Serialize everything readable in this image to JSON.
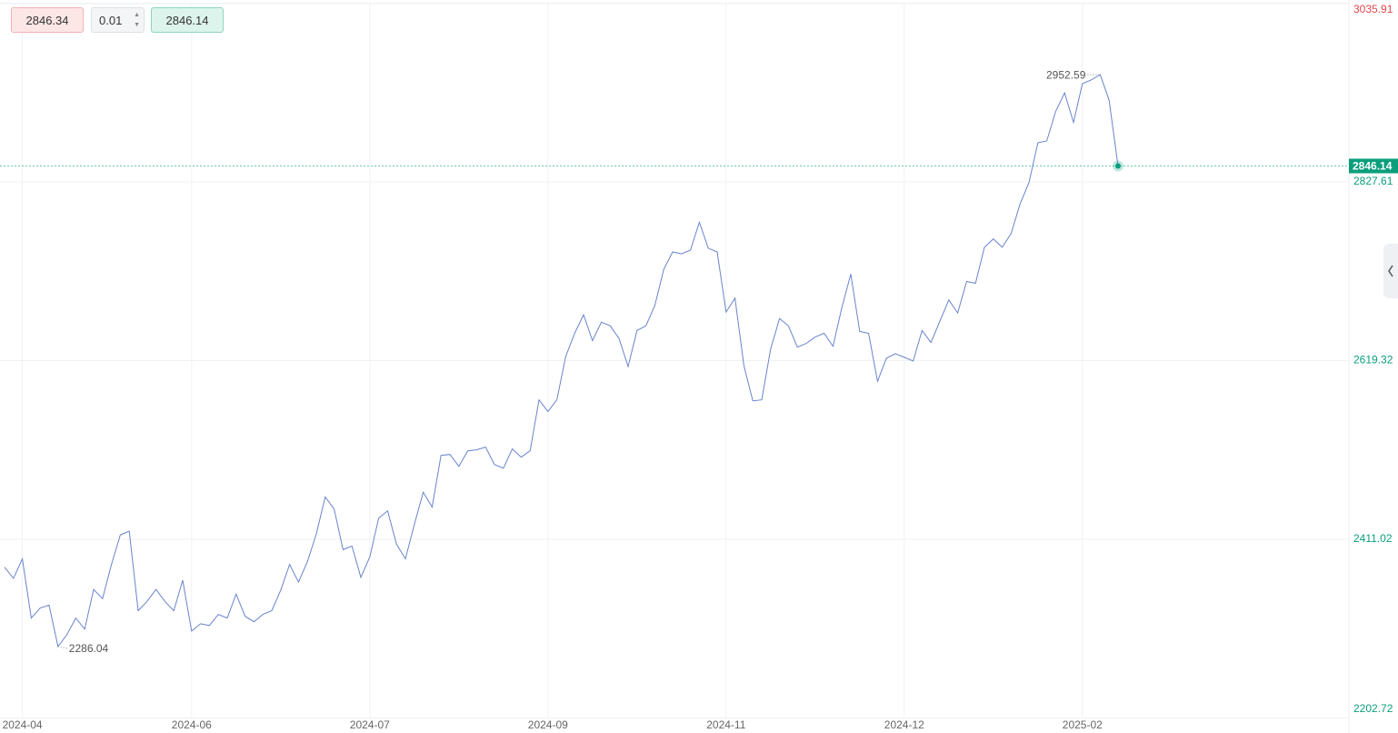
{
  "chart_data": {
    "type": "line",
    "categories": [
      null,
      null,
      "2024-04",
      null,
      null,
      null,
      null,
      null,
      null,
      null,
      null,
      null,
      null,
      null,
      null,
      null,
      null,
      null,
      null,
      null,
      null,
      "2024-06",
      null,
      null,
      null,
      null,
      null,
      null,
      null,
      null,
      null,
      null,
      null,
      null,
      null,
      null,
      null,
      null,
      null,
      null,
      null,
      "2024-07",
      null,
      null,
      null,
      null,
      null,
      null,
      null,
      null,
      null,
      null,
      null,
      null,
      null,
      null,
      null,
      null,
      null,
      null,
      null,
      "2024-09",
      null,
      null,
      null,
      null,
      null,
      null,
      null,
      null,
      null,
      null,
      null,
      null,
      null,
      null,
      null,
      null,
      null,
      null,
      null,
      "2024-11",
      null,
      null,
      null,
      null,
      null,
      null,
      null,
      null,
      null,
      null,
      null,
      null,
      null,
      null,
      null,
      null,
      null,
      null,
      null,
      "2024-12",
      null,
      null,
      null,
      null,
      null,
      null,
      null,
      null,
      null,
      null,
      null,
      null,
      null,
      null,
      null,
      null,
      null,
      null,
      null,
      "2025-02",
      null,
      null,
      null,
      null
    ],
    "values": [
      2378.5,
      2365.5,
      2388.2,
      2319.2,
      2331.0,
      2334.3,
      2286.04,
      2299.8,
      2319.2,
      2306.3,
      2352.6,
      2341.8,
      2381.7,
      2416.2,
      2420.5,
      2327.8,
      2338.6,
      2352.6,
      2338.6,
      2327.8,
      2363.3,
      2304.1,
      2312.5,
      2310.5,
      2323.5,
      2319.2,
      2347.2,
      2321.3,
      2314.9,
      2323.5,
      2327.8,
      2351.5,
      2381.7,
      2361.2,
      2384.9,
      2417.3,
      2460.4,
      2446.3,
      2398.9,
      2403.2,
      2366.6,
      2390.3,
      2435.6,
      2444.2,
      2405.4,
      2388.2,
      2428.1,
      2465.8,
      2448.5,
      2508.9,
      2509.9,
      2496.0,
      2514.2,
      2515.3,
      2518.5,
      2498.0,
      2493.8,
      2516.4,
      2506.7,
      2514.2,
      2573.5,
      2560.0,
      2573.5,
      2624.2,
      2651.1,
      2672.7,
      2642.5,
      2664.1,
      2659.8,
      2644.7,
      2612.3,
      2654.4,
      2659.8,
      2683.5,
      2725.5,
      2746.0,
      2743.8,
      2748.1,
      2780.5,
      2750.3,
      2746.0,
      2675.9,
      2692.1,
      2613.4,
      2572.5,
      2573.5,
      2632.8,
      2668.4,
      2659.8,
      2635.0,
      2639.3,
      2646.8,
      2651.1,
      2636.0,
      2681.3,
      2720.1,
      2653.3,
      2651.1,
      2595.1,
      2622.1,
      2627.4,
      2623.1,
      2618.8,
      2654.4,
      2640.4,
      2665.2,
      2690.0,
      2674.9,
      2711.5,
      2709.4,
      2751.4,
      2761.1,
      2751.4,
      2767.5,
      2802.0,
      2826.8,
      2873.2,
      2875.3,
      2909.8,
      2931.4,
      2896.9,
      2942.1,
      2946.5,
      2952.59,
      2922.7,
      2846.14
    ],
    "color": "#6a84cc",
    "ylim": [
      2202.72,
      3035.91
    ],
    "yticks": [
      3035.91,
      2827.61,
      2619.32,
      2411.02,
      2202.72
    ],
    "ytick_colors": [
      "#e0474c",
      "#0a9e7c",
      "#0a9e7c",
      "#0a9e7c",
      "#0a9e7c"
    ],
    "last_price_color": "#0a9e7c",
    "grid": true
  },
  "toolbar": {
    "sell": "2846.34",
    "step": "0.01",
    "buy": "2846.14"
  }
}
